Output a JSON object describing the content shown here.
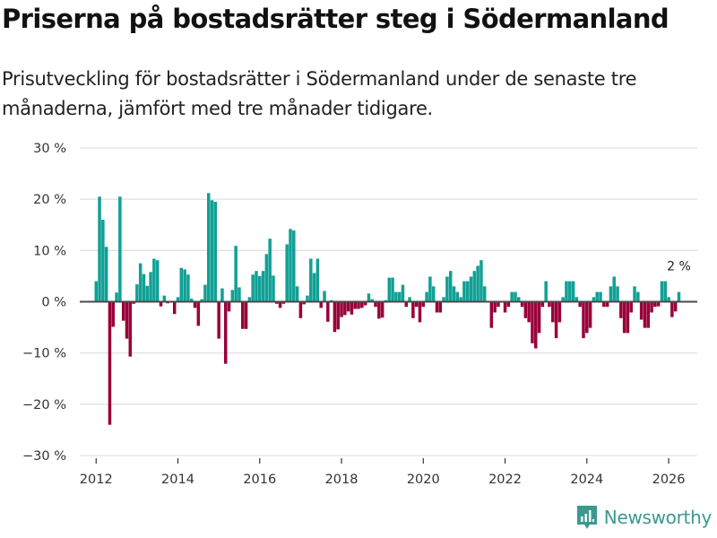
{
  "title": "Priserna på bostadsrätter steg i Södermanland",
  "subtitle": "Prisutveckling för bostadsrätter i Södermanland under de senaste tre månaderna, jämfört med tre månader tidigare.",
  "brand": {
    "name": "Newsworthy",
    "icon": "bar-chart-logo-icon",
    "color": "#3a9a8f"
  },
  "colors": {
    "positive": "#11a095",
    "negative": "#990038",
    "zero_line": "#4a4a4a",
    "grid": "#e3e3e3"
  },
  "chart_data": {
    "type": "bar",
    "title": "Priserna på bostadsrätter steg i Södermanland",
    "xlabel": "",
    "ylabel": "",
    "frequency": "monthly",
    "start": "2012-01",
    "end": "2026-04",
    "ylim": [
      -30,
      30
    ],
    "yticks": [
      30,
      20,
      10,
      0,
      -10,
      -20,
      -30
    ],
    "ytick_labels": [
      "30 %",
      "20 %",
      "10 %",
      "0 %",
      "−10 %",
      "−20 %",
      "−30 %"
    ],
    "xlim": [
      2011.6,
      2026.7
    ],
    "xticks": [
      2012,
      2014,
      2016,
      2018,
      2020,
      2022,
      2024,
      2026
    ],
    "xtick_labels": [
      "2012",
      "2014",
      "2016",
      "2018",
      "2020",
      "2022",
      "2024",
      "2026"
    ],
    "grid": true,
    "legend": "none",
    "annotation": {
      "text": "2 %",
      "at": "last"
    },
    "values": [
      4.0,
      20.5,
      16.0,
      10.7,
      -24.0,
      -4.9,
      1.8,
      20.5,
      -3.7,
      -7.2,
      -10.7,
      -0.4,
      3.4,
      7.5,
      5.4,
      3.1,
      5.8,
      8.4,
      8.1,
      -0.9,
      1.2,
      -0.3,
      0.0,
      -2.4,
      0.9,
      6.6,
      6.3,
      5.3,
      0.6,
      -1.2,
      -4.7,
      0.5,
      3.3,
      21.2,
      19.8,
      19.5,
      -7.2,
      2.6,
      -12.1,
      -1.9,
      2.3,
      10.9,
      2.8,
      -5.3,
      -5.3,
      0.9,
      5.3,
      6.0,
      5.0,
      6.0,
      9.3,
      12.3,
      5.1,
      -0.4,
      -1.2,
      -0.4,
      11.2,
      14.2,
      13.9,
      3.0,
      -3.2,
      -0.5,
      1.2,
      8.4,
      5.6,
      8.4,
      -1.2,
      2.1,
      -3.9,
      0.3,
      -5.9,
      -5.4,
      -3.0,
      -2.6,
      -1.9,
      -2.5,
      -1.4,
      -1.4,
      -1.2,
      -0.7,
      1.6,
      0.5,
      -1.0,
      -3.3,
      -3.1,
      0.3,
      4.7,
      4.7,
      1.9,
      1.9,
      3.3,
      -1.0,
      0.9,
      -3.2,
      -1.0,
      -4.0,
      -1.0,
      1.9,
      4.9,
      3.0,
      -2.1,
      -2.1,
      0.9,
      4.9,
      6.0,
      3.0,
      1.9,
      0.9,
      4.0,
      4.0,
      4.9,
      6.0,
      7.0,
      8.1,
      3.0,
      0.0,
      -5.1,
      -2.1,
      -1.0,
      0.0,
      -2.1,
      -1.0,
      1.9,
      1.9,
      0.9,
      -1.0,
      -3.2,
      -4.0,
      -8.1,
      -9.1,
      -6.1,
      -1.0,
      4.0,
      -1.0,
      -4.0,
      -7.1,
      -4.0,
      0.9,
      4.0,
      4.0,
      4.0,
      0.9,
      -1.0,
      -7.1,
      -6.1,
      -5.1,
      0.9,
      1.9,
      1.9,
      -1.0,
      -1.0,
      3.0,
      4.9,
      3.0,
      -3.2,
      -6.1,
      -6.1,
      -2.1,
      3.0,
      1.9,
      -3.5,
      -5.1,
      -5.1,
      -2.1,
      -1.0,
      -0.9,
      4.0,
      4.0,
      0.9,
      -3.0,
      -1.9,
      1.9
    ]
  }
}
